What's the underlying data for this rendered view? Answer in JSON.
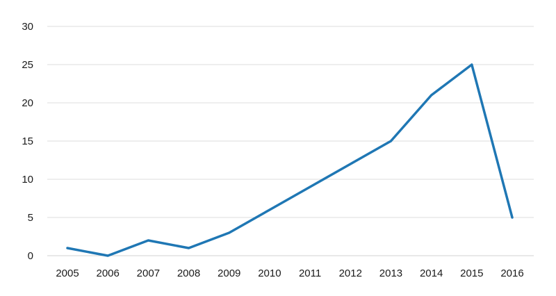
{
  "chart_data": {
    "type": "line",
    "title": "",
    "xlabel": "",
    "ylabel": "",
    "categories": [
      "2005",
      "2006",
      "2007",
      "2008",
      "2009",
      "2010",
      "2011",
      "2012",
      "2013",
      "2014",
      "2015",
      "2016"
    ],
    "series": [
      {
        "values": [
          1,
          0,
          2,
          1,
          3,
          6,
          9,
          12,
          15,
          21,
          25,
          5
        ],
        "color": "#1f77b4"
      }
    ],
    "ylim": [
      0,
      30
    ],
    "yticks": [
      "0",
      "5",
      "10",
      "15",
      "20",
      "25",
      "30"
    ],
    "grid": "horizontal",
    "legend": "none"
  }
}
